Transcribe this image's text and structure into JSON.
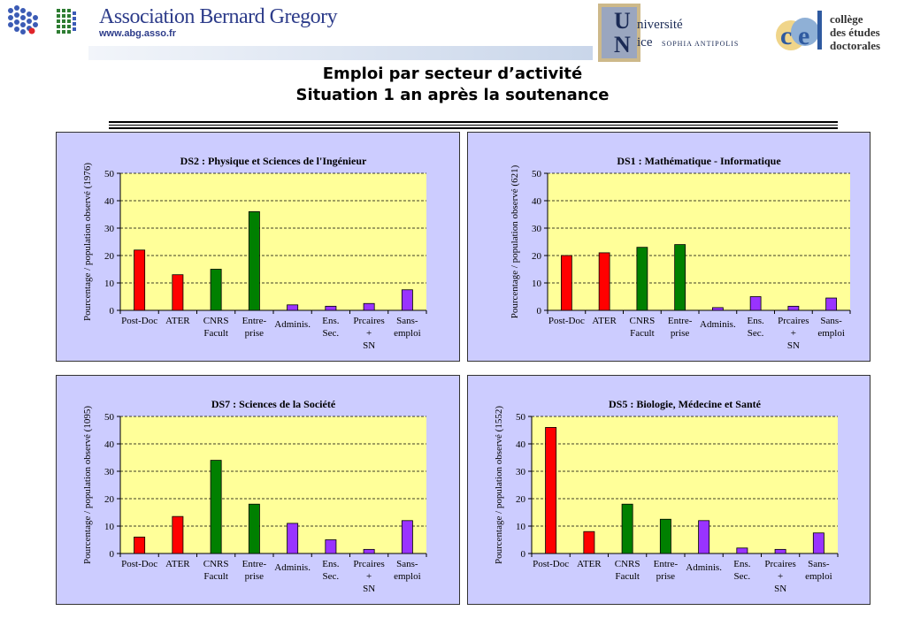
{
  "header": {
    "org_name": "Association Bernard Gregory",
    "org_url": "www.abg.asso.fr",
    "univ_line1": "niversité",
    "univ_line2": "ice",
    "univ_sub": "SOPHIA ANTIPOLIS",
    "ced_line1": "collège",
    "ced_line2": "des études",
    "ced_line3": "doctorales"
  },
  "slide": {
    "title_line1": "Emploi par secteur d’activité",
    "title_line2": "Situation 1 an après la soutenance"
  },
  "colors": {
    "panel_bg": "#ccccff",
    "plot_bg": "#ffff99",
    "red": "#ff0000",
    "green": "#008000",
    "purple": "#9933ff"
  },
  "chart_data": [
    {
      "type": "bar",
      "title": "DS2 : Physique et Sciences de l'Ingénieur",
      "ylabel": "Pourcentage / population observé (1976)",
      "ylim": [
        0,
        50
      ],
      "yticks": [
        0,
        10,
        20,
        30,
        40,
        50
      ],
      "categories": [
        "Post-Doc",
        "ATER",
        "CNRS Facult",
        "Entre- prise",
        "Adminis.",
        "Ens. Sec.",
        "Prcaires + SN",
        "Sans- emploi"
      ],
      "values": [
        22,
        13,
        15,
        36,
        2,
        1.5,
        2.5,
        7.5
      ],
      "bar_colors": [
        "red",
        "red",
        "green",
        "green",
        "purple",
        "purple",
        "purple",
        "purple"
      ],
      "grid": true
    },
    {
      "type": "bar",
      "title": "DS1 : Mathématique - Informatique",
      "ylabel": "Pourcentage / population observé (621)",
      "ylim": [
        0,
        50
      ],
      "yticks": [
        0,
        10,
        20,
        30,
        40,
        50
      ],
      "categories": [
        "Post-Doc",
        "ATER",
        "CNRS Facult",
        "Entre- prise",
        "Adminis.",
        "Ens. Sec.",
        "Prcaires + SN",
        "Sans- emploi"
      ],
      "values": [
        20,
        21,
        23,
        24,
        1,
        5,
        1.5,
        4.5
      ],
      "bar_colors": [
        "red",
        "red",
        "green",
        "green",
        "purple",
        "purple",
        "purple",
        "purple"
      ],
      "grid": true
    },
    {
      "type": "bar",
      "title": "DS7 : Sciences de la Société",
      "ylabel": "Pourcentage / population observé (1095)",
      "ylim": [
        0,
        50
      ],
      "yticks": [
        0,
        10,
        20,
        30,
        40,
        50
      ],
      "categories": [
        "Post-Doc",
        "ATER",
        "CNRS Facult",
        "Entre- prise",
        "Adminis.",
        "Ens. Sec.",
        "Prcaires + SN",
        "Sans- emploi"
      ],
      "values": [
        6,
        13.5,
        34,
        18,
        11,
        5,
        1.5,
        12
      ],
      "bar_colors": [
        "red",
        "red",
        "green",
        "green",
        "purple",
        "purple",
        "purple",
        "purple"
      ],
      "grid": true
    },
    {
      "type": "bar",
      "title": "DS5 : Biologie, Médecine et Santé",
      "ylabel": "Pourcentage / population observé (1552)",
      "ylim": [
        0,
        50
      ],
      "yticks": [
        0,
        10,
        20,
        30,
        40,
        50
      ],
      "categories": [
        "Post-Doc",
        "ATER",
        "CNRS Facult",
        "Entre- prise",
        "Adminis.",
        "Ens. Sec.",
        "Prcaires + SN",
        "Sans- emploi"
      ],
      "values": [
        46,
        8,
        18,
        12.5,
        12,
        2,
        1.5,
        7.5
      ],
      "bar_colors": [
        "red",
        "red",
        "green",
        "green",
        "purple",
        "purple",
        "purple",
        "purple"
      ],
      "grid": true
    }
  ]
}
